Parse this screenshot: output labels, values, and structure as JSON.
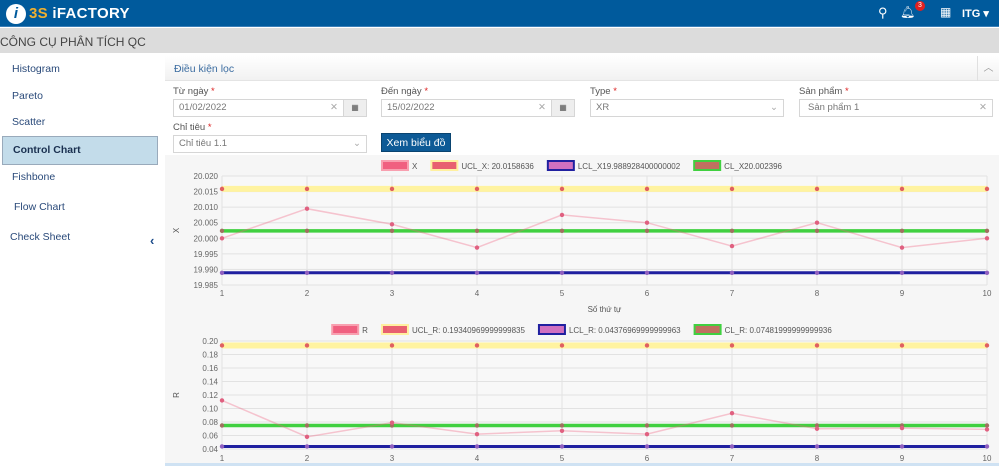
{
  "header": {
    "brand_prefix": "3S",
    "brand_name": "iFACTORY",
    "notification_count": "3",
    "user": "ITG ▾",
    "icons": [
      "search-icon",
      "bell-icon",
      "apps-grid-icon"
    ]
  },
  "subheader": {
    "title": "CÔNG CỤ PHÂN TÍCH QC"
  },
  "sidebar": {
    "items": [
      {
        "label": "Histogram"
      },
      {
        "label": "Pareto"
      },
      {
        "label": "Scatter"
      },
      {
        "label": "Control Chart",
        "active": true
      },
      {
        "label": "Fishbone"
      },
      {
        "label": "Flow Chart"
      },
      {
        "label": "Check Sheet"
      }
    ],
    "collapse_icon": "‹"
  },
  "filter": {
    "title": "Điều kiện lọc",
    "from_date": {
      "label": "Từ ngày",
      "value": "01/02/2022"
    },
    "to_date": {
      "label": "Đến ngày",
      "value": "15/02/2022"
    },
    "type": {
      "label": "Type",
      "value": "XR"
    },
    "product": {
      "label": "Sản phẩm",
      "value": "Sản phẩm 1"
    },
    "indicator": {
      "label": "Chỉ tiêu",
      "value": "Chỉ tiêu 1.1"
    },
    "view_button": "Xem biểu đồ"
  },
  "chart_data": [
    {
      "type": "line",
      "xlabel": "Số thứ tự",
      "ylabel": "X",
      "ylim": [
        19.985,
        20.02
      ],
      "yticks": [
        "20.020",
        "20.015",
        "20.010",
        "20.005",
        "20.000",
        "19.995",
        "19.990",
        "19.985"
      ],
      "x": [
        1,
        2,
        3,
        4,
        5,
        6,
        7,
        8,
        9,
        10
      ],
      "grid": true,
      "legend": "top",
      "series": [
        {
          "name": "X",
          "values": [
            20.0,
            20.0095,
            20.0045,
            19.997,
            20.0075,
            20.005,
            19.9975,
            20.005,
            19.997,
            20.0
          ],
          "color": "#f06080"
        },
        {
          "name": "UCL_X: 20.0158636",
          "values": [
            20.0158636,
            20.0158636,
            20.0158636,
            20.0158636,
            20.0158636,
            20.0158636,
            20.0158636,
            20.0158636,
            20.0158636,
            20.0158636
          ],
          "color": "#fff3a0"
        },
        {
          "name": "LCL_X19.988928400000002",
          "values": [
            19.9889284,
            19.9889284,
            19.9889284,
            19.9889284,
            19.9889284,
            19.9889284,
            19.9889284,
            19.9889284,
            19.9889284,
            19.9889284
          ],
          "color": "#2020a0"
        },
        {
          "name": "CL_X20.002396",
          "values": [
            20.002396,
            20.002396,
            20.002396,
            20.002396,
            20.002396,
            20.002396,
            20.002396,
            20.002396,
            20.002396,
            20.002396
          ],
          "color": "#40d040"
        }
      ]
    },
    {
      "type": "line",
      "xlabel": "",
      "ylabel": "R",
      "ylim": [
        0.04,
        0.2
      ],
      "yticks": [
        "0.20",
        "0.18",
        "0.16",
        "0.14",
        "0.12",
        "0.10",
        "0.08",
        "0.06",
        "0.04"
      ],
      "x": [
        1,
        2,
        3,
        4,
        5,
        6,
        7,
        8,
        9,
        10
      ],
      "grid": true,
      "legend": "top",
      "series": [
        {
          "name": "R",
          "values": [
            0.112,
            0.058,
            0.079,
            0.062,
            0.067,
            0.062,
            0.093,
            0.07,
            0.071,
            0.069
          ],
          "color": "#f06080"
        },
        {
          "name": "UCL_R: 0.19340969999999835",
          "values": [
            0.1934,
            0.1934,
            0.1934,
            0.1934,
            0.1934,
            0.1934,
            0.1934,
            0.1934,
            0.1934,
            0.1934
          ],
          "color": "#fff3a0"
        },
        {
          "name": "LCL_R: 0.04376969999999963",
          "values": [
            0.04377,
            0.04377,
            0.04377,
            0.04377,
            0.04377,
            0.04377,
            0.04377,
            0.04377,
            0.04377,
            0.04377
          ],
          "color": "#2020a0"
        },
        {
          "name": "CL_R: 0.07481999999999936",
          "values": [
            0.07482,
            0.07482,
            0.07482,
            0.07482,
            0.07482,
            0.07482,
            0.07482,
            0.07482,
            0.07482,
            0.07482
          ],
          "color": "#40d040"
        }
      ]
    }
  ]
}
